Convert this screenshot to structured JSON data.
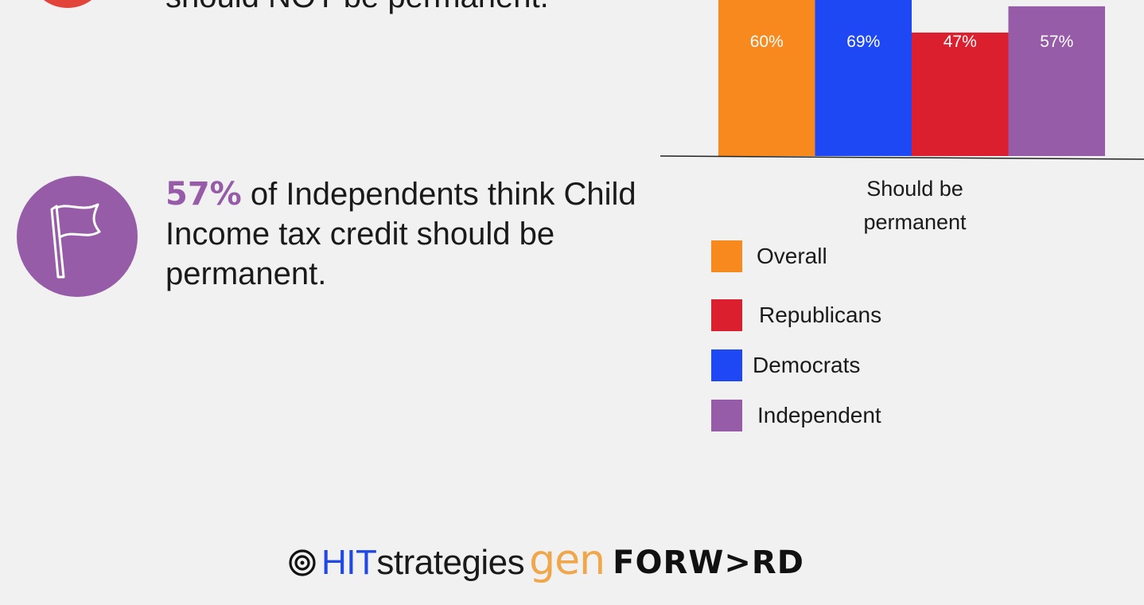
{
  "colors": {
    "background": "#f1f1f1",
    "overall": "#f7891f",
    "democrats": "#1f48f5",
    "republicans": "#dc1f2e",
    "independent": "#975ca8",
    "top_circle": "#e2433a",
    "flag_circle": "#975ca8",
    "highlight": "#975ca8"
  },
  "top_stat": {
    "text": "should NOT be permanent."
  },
  "independent_stat": {
    "highlight": "57%",
    "text": " of Independents think Child Income tax credit should be permanent.",
    "icon": "flag-icon"
  },
  "chart_data": {
    "type": "bar",
    "categories": [
      "Should be permanent"
    ],
    "category_label": "Should be permanent",
    "series": [
      {
        "name": "Overall",
        "values": [
          60
        ],
        "label": "60%",
        "color": "#f7891f"
      },
      {
        "name": "Democrats",
        "values": [
          69
        ],
        "label": "69%",
        "color": "#1f48f5"
      },
      {
        "name": "Republicans",
        "values": [
          47
        ],
        "label": "47%",
        "color": "#dc1f2e"
      },
      {
        "name": "Independent",
        "values": [
          57
        ],
        "label": "57%",
        "color": "#975ca8"
      }
    ],
    "legend": [
      {
        "name": "Overall",
        "color": "#f7891f"
      },
      {
        "name": "Republicans",
        "color": "#dc1f2e"
      },
      {
        "name": "Democrats",
        "color": "#1f48f5"
      },
      {
        "name": "Independent",
        "color": "#975ca8"
      }
    ],
    "legend_position": "bottom-left",
    "grid": false,
    "y_unit": "%"
  },
  "logos": {
    "hit": "HIT",
    "strategies": "strategies",
    "gen": "gen",
    "forward": "FORW>RD",
    "target_icon": "target-icon"
  }
}
